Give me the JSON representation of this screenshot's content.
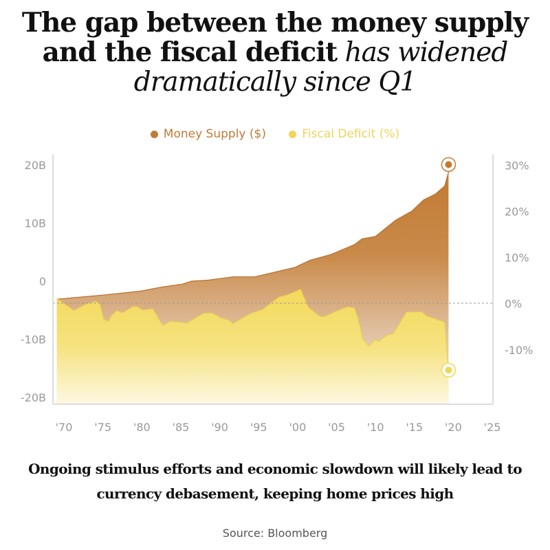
{
  "title": {
    "bold": "The gap between the money supply and the fiscal deficit",
    "italic": "has widened dramatically since Q1"
  },
  "subtitle": "Ongoing stimulus efforts and economic slowdown will likely lead to currency debasement, keeping home prices high",
  "source": "Source: Bloomberg",
  "chart_data": {
    "type": "area",
    "title": "The gap between the money supply and the fiscal deficit has widened dramatically since Q1",
    "legend_position": "top-center",
    "grid": false,
    "xlim": [
      1969.5,
      2026
    ],
    "x_ticks": [
      1970,
      1975,
      1980,
      1985,
      1990,
      1995,
      2000,
      2005,
      2010,
      2015,
      2020,
      2025
    ],
    "x_tick_labels": [
      "'70",
      "'75",
      "'80",
      "'85",
      "'90",
      "'95",
      "'00",
      "'05",
      "'10",
      "'15",
      "'20",
      "'25"
    ],
    "y_left": {
      "ylim": [
        -21.2,
        21.8
      ],
      "ticks": [
        20,
        10,
        0,
        -10,
        -20
      ],
      "tick_labels": [
        "20B",
        "10B",
        "0",
        "-10B",
        "-20B"
      ]
    },
    "y_right": {
      "ylim": [
        -21.8,
        32.3
      ],
      "ticks": [
        30,
        20,
        10,
        0,
        -10
      ],
      "tick_labels": [
        "30%",
        "20%",
        "10%",
        "0%",
        "-10%"
      ],
      "reference_line": 0
    },
    "series": [
      {
        "name": "Money Supply ($)",
        "axis": "left",
        "color": "#c27a33",
        "x": [
          1970,
          1975.8,
          1980.8,
          1983.5,
          1986.1,
          1987.3,
          1989.5,
          1992.6,
          1995.4,
          2000.6,
          2002.5,
          2005.2,
          2008.2,
          2009.2,
          2010.9,
          2013.5,
          2015.6,
          2017.1,
          2018.6,
          2019.8,
          2020.3,
          2020.3
        ],
        "y": [
          -3.1,
          -2.4,
          -1.7,
          -1.0,
          -0.5,
          0,
          0.2,
          0.75,
          0.75,
          2.4,
          3.6,
          4.6,
          6.3,
          7.3,
          7.7,
          10.5,
          12.1,
          14.0,
          15.0,
          16.4,
          18.8,
          20.1
        ]
      },
      {
        "name": "Fiscal Deficit (%)",
        "axis": "right",
        "color": "#f2d65a",
        "x": [
          1970,
          1972.2,
          1973.6,
          1974.9,
          1975.5,
          1976.0,
          1976.6,
          1977.0,
          1977.7,
          1978.4,
          1979.8,
          1980.4,
          1981.0,
          1982.3,
          1983.6,
          1984.6,
          1986.7,
          1988.8,
          1989.9,
          1991.1,
          1992.1,
          1992.6,
          1994.9,
          1996.4,
          1998.5,
          1999.6,
          2001.3,
          2002.3,
          2003.8,
          2004.5,
          2005.9,
          2007.3,
          2008.2,
          2008.7,
          2009.3,
          2010.1,
          2010.9,
          2011.3,
          2012.4,
          2013.2,
          2014.9,
          2016.9,
          2017.4,
          2019.8,
          2020.3
        ],
        "y": [
          1.1,
          -1.5,
          -0.2,
          0.5,
          0.1,
          -3.3,
          -3.9,
          -2.6,
          -1.5,
          -2.0,
          -0.6,
          -0.7,
          -1.4,
          -1.1,
          -4.7,
          -3.8,
          -4.2,
          -2.1,
          -2.0,
          -3.1,
          -3.6,
          -4.3,
          -2.1,
          -1.3,
          1.4,
          1.9,
          3.1,
          -0.8,
          -2.8,
          -2.7,
          -1.6,
          -0.7,
          -0.9,
          -3.3,
          -7.7,
          -9.2,
          -7.7,
          -8.2,
          -6.8,
          -6.5,
          -1.8,
          -1.8,
          -2.6,
          -4.0,
          -14.4
        ]
      }
    ]
  }
}
